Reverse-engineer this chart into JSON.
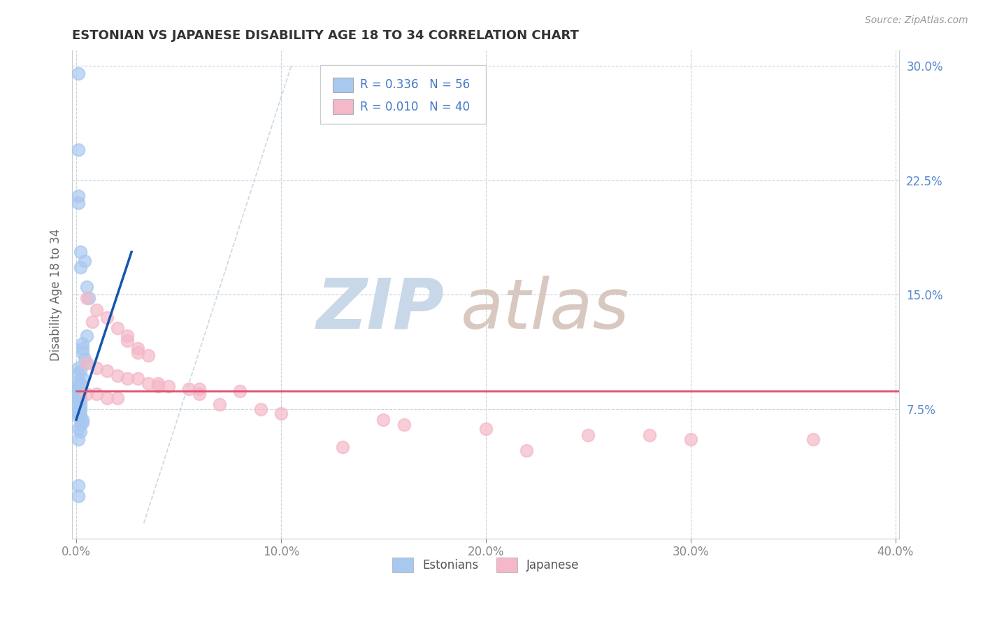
{
  "title": "ESTONIAN VS JAPANESE DISABILITY AGE 18 TO 34 CORRELATION CHART",
  "source_text": "Source: ZipAtlas.com",
  "ylabel": "Disability Age 18 to 34",
  "xlim": [
    -0.002,
    0.402
  ],
  "ylim": [
    -0.01,
    0.31
  ],
  "xtick_labels": [
    "0.0%",
    "10.0%",
    "20.0%",
    "30.0%",
    "40.0%"
  ],
  "xtick_values": [
    0.0,
    0.1,
    0.2,
    0.3,
    0.4
  ],
  "ytick_labels": [
    "7.5%",
    "15.0%",
    "22.5%",
    "30.0%"
  ],
  "ytick_values": [
    0.075,
    0.15,
    0.225,
    0.3
  ],
  "R_estonian": 0.336,
  "N_estonian": 56,
  "R_japanese": 0.01,
  "N_japanese": 40,
  "estonian_color": "#a8c8f0",
  "japanese_color": "#f4b8c8",
  "estonian_line_color": "#1555b0",
  "japanese_line_color": "#e05070",
  "diag_line_color": "#b8c8d8",
  "watermark_zip_color": "#c8d8e8",
  "watermark_atlas_color": "#d8c8c0",
  "background_color": "#ffffff",
  "grid_color": "#c8d4dc",
  "tick_color": "#5588cc",
  "legend_text_color": "#4477cc",
  "title_color": "#333333",
  "source_color": "#999999",
  "ylabel_color": "#666666",
  "estonian_scatter": [
    [
      0.001,
      0.295
    ],
    [
      0.001,
      0.245
    ],
    [
      0.001,
      0.215
    ],
    [
      0.001,
      0.21
    ],
    [
      0.002,
      0.178
    ],
    [
      0.002,
      0.168
    ],
    [
      0.004,
      0.172
    ],
    [
      0.005,
      0.155
    ],
    [
      0.006,
      0.148
    ],
    [
      0.005,
      0.123
    ],
    [
      0.003,
      0.118
    ],
    [
      0.003,
      0.115
    ],
    [
      0.003,
      0.112
    ],
    [
      0.004,
      0.108
    ],
    [
      0.005,
      0.105
    ],
    [
      0.001,
      0.102
    ],
    [
      0.002,
      0.1
    ],
    [
      0.001,
      0.098
    ],
    [
      0.003,
      0.095
    ],
    [
      0.001,
      0.093
    ],
    [
      0.002,
      0.092
    ],
    [
      0.001,
      0.09
    ],
    [
      0.001,
      0.09
    ],
    [
      0.001,
      0.088
    ],
    [
      0.001,
      0.088
    ],
    [
      0.002,
      0.087
    ],
    [
      0.001,
      0.086
    ],
    [
      0.001,
      0.086
    ],
    [
      0.001,
      0.085
    ],
    [
      0.002,
      0.085
    ],
    [
      0.001,
      0.084
    ],
    [
      0.001,
      0.084
    ],
    [
      0.001,
      0.083
    ],
    [
      0.001,
      0.083
    ],
    [
      0.001,
      0.082
    ],
    [
      0.002,
      0.082
    ],
    [
      0.001,
      0.08
    ],
    [
      0.002,
      0.08
    ],
    [
      0.001,
      0.079
    ],
    [
      0.001,
      0.078
    ],
    [
      0.002,
      0.077
    ],
    [
      0.001,
      0.076
    ],
    [
      0.002,
      0.075
    ],
    [
      0.001,
      0.074
    ],
    [
      0.001,
      0.073
    ],
    [
      0.001,
      0.072
    ],
    [
      0.002,
      0.071
    ],
    [
      0.001,
      0.07
    ],
    [
      0.003,
      0.068
    ],
    [
      0.003,
      0.066
    ],
    [
      0.002,
      0.065
    ],
    [
      0.001,
      0.062
    ],
    [
      0.002,
      0.06
    ],
    [
      0.001,
      0.055
    ],
    [
      0.001,
      0.025
    ],
    [
      0.001,
      0.018
    ]
  ],
  "japanese_scatter": [
    [
      0.005,
      0.148
    ],
    [
      0.01,
      0.14
    ],
    [
      0.015,
      0.135
    ],
    [
      0.008,
      0.132
    ],
    [
      0.02,
      0.128
    ],
    [
      0.025,
      0.123
    ],
    [
      0.025,
      0.12
    ],
    [
      0.03,
      0.115
    ],
    [
      0.03,
      0.112
    ],
    [
      0.035,
      0.11
    ],
    [
      0.005,
      0.105
    ],
    [
      0.01,
      0.102
    ],
    [
      0.015,
      0.1
    ],
    [
      0.02,
      0.097
    ],
    [
      0.025,
      0.095
    ],
    [
      0.03,
      0.095
    ],
    [
      0.035,
      0.092
    ],
    [
      0.04,
      0.092
    ],
    [
      0.04,
      0.09
    ],
    [
      0.045,
      0.09
    ],
    [
      0.06,
      0.088
    ],
    [
      0.055,
      0.088
    ],
    [
      0.08,
      0.087
    ],
    [
      0.06,
      0.085
    ],
    [
      0.005,
      0.085
    ],
    [
      0.01,
      0.085
    ],
    [
      0.015,
      0.082
    ],
    [
      0.02,
      0.082
    ],
    [
      0.07,
      0.078
    ],
    [
      0.09,
      0.075
    ],
    [
      0.1,
      0.072
    ],
    [
      0.15,
      0.068
    ],
    [
      0.16,
      0.065
    ],
    [
      0.2,
      0.062
    ],
    [
      0.25,
      0.058
    ],
    [
      0.28,
      0.058
    ],
    [
      0.3,
      0.055
    ],
    [
      0.36,
      0.055
    ],
    [
      0.13,
      0.05
    ],
    [
      0.22,
      0.048
    ]
  ],
  "estonian_line_x": [
    0.0,
    0.027
  ],
  "estonian_line_y": [
    0.068,
    0.178
  ],
  "japanese_line_x": [
    0.0,
    0.402
  ],
  "japanese_line_y": [
    0.087,
    0.087
  ],
  "diag_line_x": [
    0.033,
    0.105
  ],
  "diag_line_y": [
    0.0,
    0.3
  ]
}
